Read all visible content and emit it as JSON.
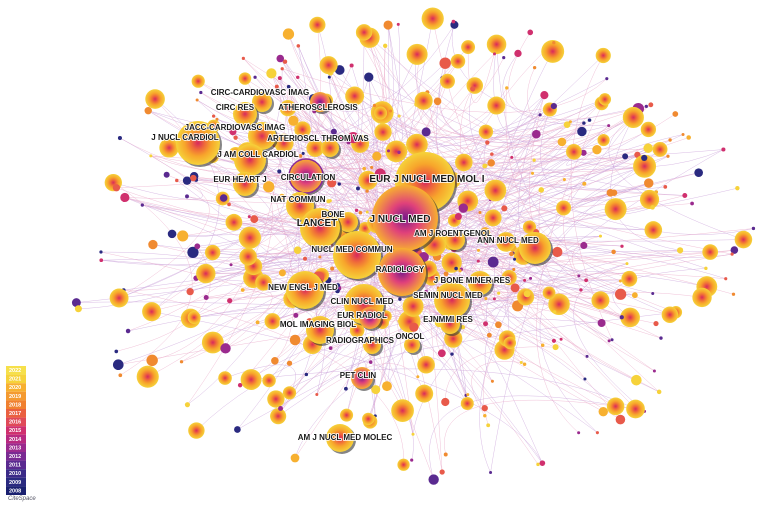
{
  "nodes": [
    {
      "label": "CIRC-CARDIOVASC IMAG"
    },
    {
      "label": "CIRC RES"
    },
    {
      "label": "ATHEROSCLEROSIS"
    },
    {
      "label": "JACC-CARDIOVASC IMAG"
    },
    {
      "label": "J NUCL CARDIOL"
    },
    {
      "label": "ARTERIOSCL THROM VAS"
    },
    {
      "label": "J AM COLL CARDIOL"
    },
    {
      "label": "CIRCULATION"
    },
    {
      "label": "EUR HEART J"
    },
    {
      "label": "EUR J NUCL MED MOL I"
    },
    {
      "label": "NAT COMMUN"
    },
    {
      "label": "BONE"
    },
    {
      "label": "J NUCL MED"
    },
    {
      "label": "LANCET"
    },
    {
      "label": "AM J ROENTGENOL"
    },
    {
      "label": "ANN NUCL MED"
    },
    {
      "label": "NUCL MED COMMUN"
    },
    {
      "label": "RADIOLOGY"
    },
    {
      "label": "J BONE MINER RES"
    },
    {
      "label": "NEW ENGL J MED"
    },
    {
      "label": "SEMIN NUCL MED"
    },
    {
      "label": "CLIN NUCL MED"
    },
    {
      "label": "EUR RADIOL"
    },
    {
      "label": "EJNMMI RES"
    },
    {
      "label": "MOL IMAGING BIOL"
    },
    {
      "label": "RADIOGRAPHICS"
    },
    {
      "label": "ONCOL"
    },
    {
      "label": "PET CLIN"
    },
    {
      "label": "AM J NUCL MED MOLEC"
    }
  ],
  "legend": {
    "years": [
      "2022",
      "2021",
      "2020",
      "2019",
      "2018",
      "2017",
      "2016",
      "2015",
      "2014",
      "2013",
      "2012",
      "2011",
      "2010",
      "2009",
      "2008"
    ]
  },
  "logo": "CiteSpace"
}
